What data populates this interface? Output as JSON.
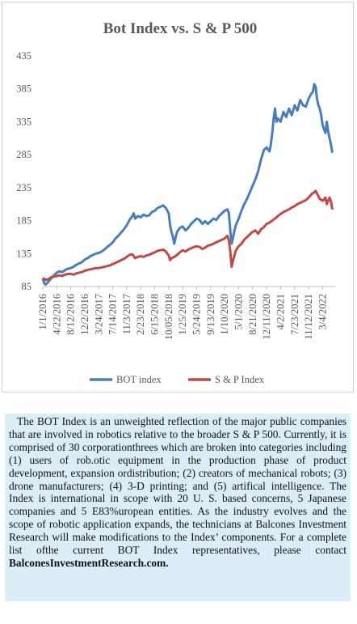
{
  "chart_data": {
    "type": "line",
    "title": "Bot Index vs. S & P 500",
    "yticks": [
      85,
      135,
      185,
      235,
      285,
      335,
      385,
      435
    ],
    "ylim": [
      85,
      435
    ],
    "xticks": [
      "1/1/2016",
      "4/22/2016",
      "8/12/2016",
      "12/2/2016",
      "3/24/2017",
      "7/14/2017",
      "11/3/2017",
      "2/23/2018",
      "6/15/2018",
      "10/05/2018",
      "1/25/2019",
      "5/24/2019",
      "9/13/2019",
      "1/10/2020",
      "5/1/2020",
      "8/21/2020",
      "12/11/2020",
      "4/2/2021",
      "7/23/2021",
      "11/12/2021",
      "3/4/2022"
    ],
    "xlim": [
      0,
      20.9
    ],
    "grid": false,
    "legend_position": "bottom",
    "series": [
      {
        "name": "BOT index",
        "color": "#4a7ebb",
        "points": [
          [
            0,
            97
          ],
          [
            0.1,
            90
          ],
          [
            0.2,
            88
          ],
          [
            0.35,
            91
          ],
          [
            0.5,
            95
          ],
          [
            0.7,
            100
          ],
          [
            0.9,
            104
          ],
          [
            1.0,
            106
          ],
          [
            1.2,
            108
          ],
          [
            1.4,
            107
          ],
          [
            1.6,
            110
          ],
          [
            1.8,
            112
          ],
          [
            2.0,
            113
          ],
          [
            2.2,
            115
          ],
          [
            2.4,
            118
          ],
          [
            2.6,
            120
          ],
          [
            2.8,
            122
          ],
          [
            3.0,
            126
          ],
          [
            3.2,
            128
          ],
          [
            3.4,
            131
          ],
          [
            3.6,
            133
          ],
          [
            3.8,
            135
          ],
          [
            4.0,
            136
          ],
          [
            4.2,
            138
          ],
          [
            4.4,
            141
          ],
          [
            4.6,
            145
          ],
          [
            4.8,
            148
          ],
          [
            5.0,
            152
          ],
          [
            5.2,
            158
          ],
          [
            5.4,
            162
          ],
          [
            5.6,
            167
          ],
          [
            5.8,
            172
          ],
          [
            6.0,
            178
          ],
          [
            6.2,
            186
          ],
          [
            6.4,
            192
          ],
          [
            6.5,
            196
          ],
          [
            6.6,
            188
          ],
          [
            6.8,
            192
          ],
          [
            7.0,
            190
          ],
          [
            7.2,
            194
          ],
          [
            7.4,
            192
          ],
          [
            7.6,
            193
          ],
          [
            7.8,
            198
          ],
          [
            8.0,
            200
          ],
          [
            8.2,
            204
          ],
          [
            8.4,
            206
          ],
          [
            8.6,
            208
          ],
          [
            8.8,
            204
          ],
          [
            9.0,
            196
          ],
          [
            9.1,
            178
          ],
          [
            9.2,
            168
          ],
          [
            9.3,
            160
          ],
          [
            9.4,
            150
          ],
          [
            9.5,
            160
          ],
          [
            9.6,
            168
          ],
          [
            9.8,
            174
          ],
          [
            10.0,
            176
          ],
          [
            10.2,
            170
          ],
          [
            10.4,
            174
          ],
          [
            10.6,
            180
          ],
          [
            10.8,
            184
          ],
          [
            11.0,
            188
          ],
          [
            11.2,
            186
          ],
          [
            11.4,
            180
          ],
          [
            11.6,
            184
          ],
          [
            11.8,
            180
          ],
          [
            12.0,
            184
          ],
          [
            12.2,
            188
          ],
          [
            12.4,
            186
          ],
          [
            12.6,
            192
          ],
          [
            12.8,
            196
          ],
          [
            13.0,
            200
          ],
          [
            13.2,
            202
          ],
          [
            13.3,
            196
          ],
          [
            13.4,
            170
          ],
          [
            13.5,
            150
          ],
          [
            13.6,
            160
          ],
          [
            13.7,
            170
          ],
          [
            13.8,
            178
          ],
          [
            14.0,
            188
          ],
          [
            14.2,
            200
          ],
          [
            14.4,
            210
          ],
          [
            14.6,
            218
          ],
          [
            14.8,
            228
          ],
          [
            15.0,
            238
          ],
          [
            15.2,
            248
          ],
          [
            15.4,
            260
          ],
          [
            15.6,
            278
          ],
          [
            15.8,
            292
          ],
          [
            16.0,
            296
          ],
          [
            16.2,
            290
          ],
          [
            16.3,
            300
          ],
          [
            16.4,
            318
          ],
          [
            16.5,
            340
          ],
          [
            16.6,
            355
          ],
          [
            16.7,
            335
          ],
          [
            16.8,
            340
          ],
          [
            17.0,
            335
          ],
          [
            17.2,
            350
          ],
          [
            17.4,
            342
          ],
          [
            17.6,
            355
          ],
          [
            17.8,
            345
          ],
          [
            18.0,
            360
          ],
          [
            18.2,
            352
          ],
          [
            18.4,
            368
          ],
          [
            18.6,
            360
          ],
          [
            18.8,
            358
          ],
          [
            19.0,
            370
          ],
          [
            19.2,
            378
          ],
          [
            19.3,
            380
          ],
          [
            19.4,
            392
          ],
          [
            19.5,
            388
          ],
          [
            19.6,
            370
          ],
          [
            19.7,
            360
          ],
          [
            19.8,
            355
          ],
          [
            19.9,
            345
          ],
          [
            20.0,
            330
          ],
          [
            20.2,
            318
          ],
          [
            20.3,
            335
          ],
          [
            20.4,
            320
          ],
          [
            20.5,
            310
          ],
          [
            20.6,
            300
          ],
          [
            20.7,
            288
          ]
        ]
      },
      {
        "name": "S & P Index",
        "color": "#be4b48",
        "points": [
          [
            0,
            98
          ],
          [
            0.2,
            95
          ],
          [
            0.4,
            96
          ],
          [
            0.6,
            99
          ],
          [
            0.8,
            100
          ],
          [
            1.0,
            101
          ],
          [
            1.2,
            102
          ],
          [
            1.4,
            101
          ],
          [
            1.6,
            103
          ],
          [
            1.8,
            104
          ],
          [
            2.0,
            104
          ],
          [
            2.2,
            103
          ],
          [
            2.4,
            105
          ],
          [
            2.6,
            106
          ],
          [
            2.8,
            107
          ],
          [
            3.0,
            109
          ],
          [
            3.2,
            110
          ],
          [
            3.4,
            111
          ],
          [
            3.6,
            112
          ],
          [
            3.8,
            113
          ],
          [
            4.0,
            113
          ],
          [
            4.2,
            114
          ],
          [
            4.4,
            115
          ],
          [
            4.6,
            116
          ],
          [
            4.8,
            117
          ],
          [
            5.0,
            119
          ],
          [
            5.2,
            121
          ],
          [
            5.4,
            123
          ],
          [
            5.6,
            125
          ],
          [
            5.8,
            127
          ],
          [
            6.0,
            130
          ],
          [
            6.2,
            133
          ],
          [
            6.4,
            134
          ],
          [
            6.6,
            128
          ],
          [
            6.8,
            130
          ],
          [
            7.0,
            131
          ],
          [
            7.2,
            130
          ],
          [
            7.4,
            132
          ],
          [
            7.6,
            133
          ],
          [
            7.8,
            135
          ],
          [
            8.0,
            137
          ],
          [
            8.2,
            139
          ],
          [
            8.4,
            140
          ],
          [
            8.6,
            141
          ],
          [
            8.8,
            138
          ],
          [
            9.0,
            132
          ],
          [
            9.1,
            125
          ],
          [
            9.2,
            128
          ],
          [
            9.4,
            130
          ],
          [
            9.6,
            133
          ],
          [
            9.8,
            137
          ],
          [
            10.0,
            140
          ],
          [
            10.2,
            138
          ],
          [
            10.4,
            141
          ],
          [
            10.6,
            143
          ],
          [
            10.8,
            145
          ],
          [
            11.0,
            146
          ],
          [
            11.2,
            145
          ],
          [
            11.4,
            142
          ],
          [
            11.6,
            144
          ],
          [
            11.8,
            147
          ],
          [
            12.0,
            148
          ],
          [
            12.2,
            150
          ],
          [
            12.4,
            152
          ],
          [
            12.6,
            154
          ],
          [
            12.8,
            156
          ],
          [
            13.0,
            158
          ],
          [
            13.2,
            162
          ],
          [
            13.3,
            155
          ],
          [
            13.4,
            138
          ],
          [
            13.5,
            115
          ],
          [
            13.6,
            125
          ],
          [
            13.7,
            132
          ],
          [
            13.8,
            140
          ],
          [
            14.0,
            146
          ],
          [
            14.2,
            150
          ],
          [
            14.4,
            156
          ],
          [
            14.6,
            160
          ],
          [
            14.8,
            164
          ],
          [
            15.0,
            168
          ],
          [
            15.2,
            170
          ],
          [
            15.4,
            165
          ],
          [
            15.6,
            172
          ],
          [
            15.8,
            175
          ],
          [
            16.0,
            180
          ],
          [
            16.2,
            182
          ],
          [
            16.4,
            185
          ],
          [
            16.6,
            188
          ],
          [
            16.8,
            192
          ],
          [
            17.0,
            195
          ],
          [
            17.2,
            198
          ],
          [
            17.4,
            200
          ],
          [
            17.6,
            202
          ],
          [
            17.8,
            205
          ],
          [
            18.0,
            207
          ],
          [
            18.2,
            210
          ],
          [
            18.4,
            212
          ],
          [
            18.6,
            214
          ],
          [
            18.8,
            216
          ],
          [
            19.0,
            220
          ],
          [
            19.2,
            225
          ],
          [
            19.4,
            228
          ],
          [
            19.5,
            230
          ],
          [
            19.6,
            226
          ],
          [
            19.7,
            222
          ],
          [
            19.8,
            218
          ],
          [
            20.0,
            215
          ],
          [
            20.2,
            220
          ],
          [
            20.3,
            210
          ],
          [
            20.4,
            215
          ],
          [
            20.5,
            220
          ],
          [
            20.6,
            214
          ],
          [
            20.7,
            202
          ]
        ]
      }
    ]
  },
  "description": {
    "segments": [
      {
        "text": "The BOT Index is an unweighted reflection of the major public companies that are involved in robotics relative to the broader S & P 500. Currently, it is comprised of 30 corporationthrees which are broken into categories including (1) users of rob.otic equipment in the production phase of product development, expansion ordistribution; (2) creators of mechanical robots; (3) drone manufacturers; (4) 3-D printing; and (5) artifical intelligence. The Index is international in scope with 20 U. S. based concerns, 5 Japanese companies and 5 E83%uropean entities. As the industry evolves and the scope of robotic application expands, the technicians at Balcones Investment Research will make modifications to the Index’ components. For a complete list ofthe current BOT Index representatives, please contact "
      },
      {
        "text": "BalconesInvestmentResearch.com.",
        "bold": true
      }
    ]
  }
}
